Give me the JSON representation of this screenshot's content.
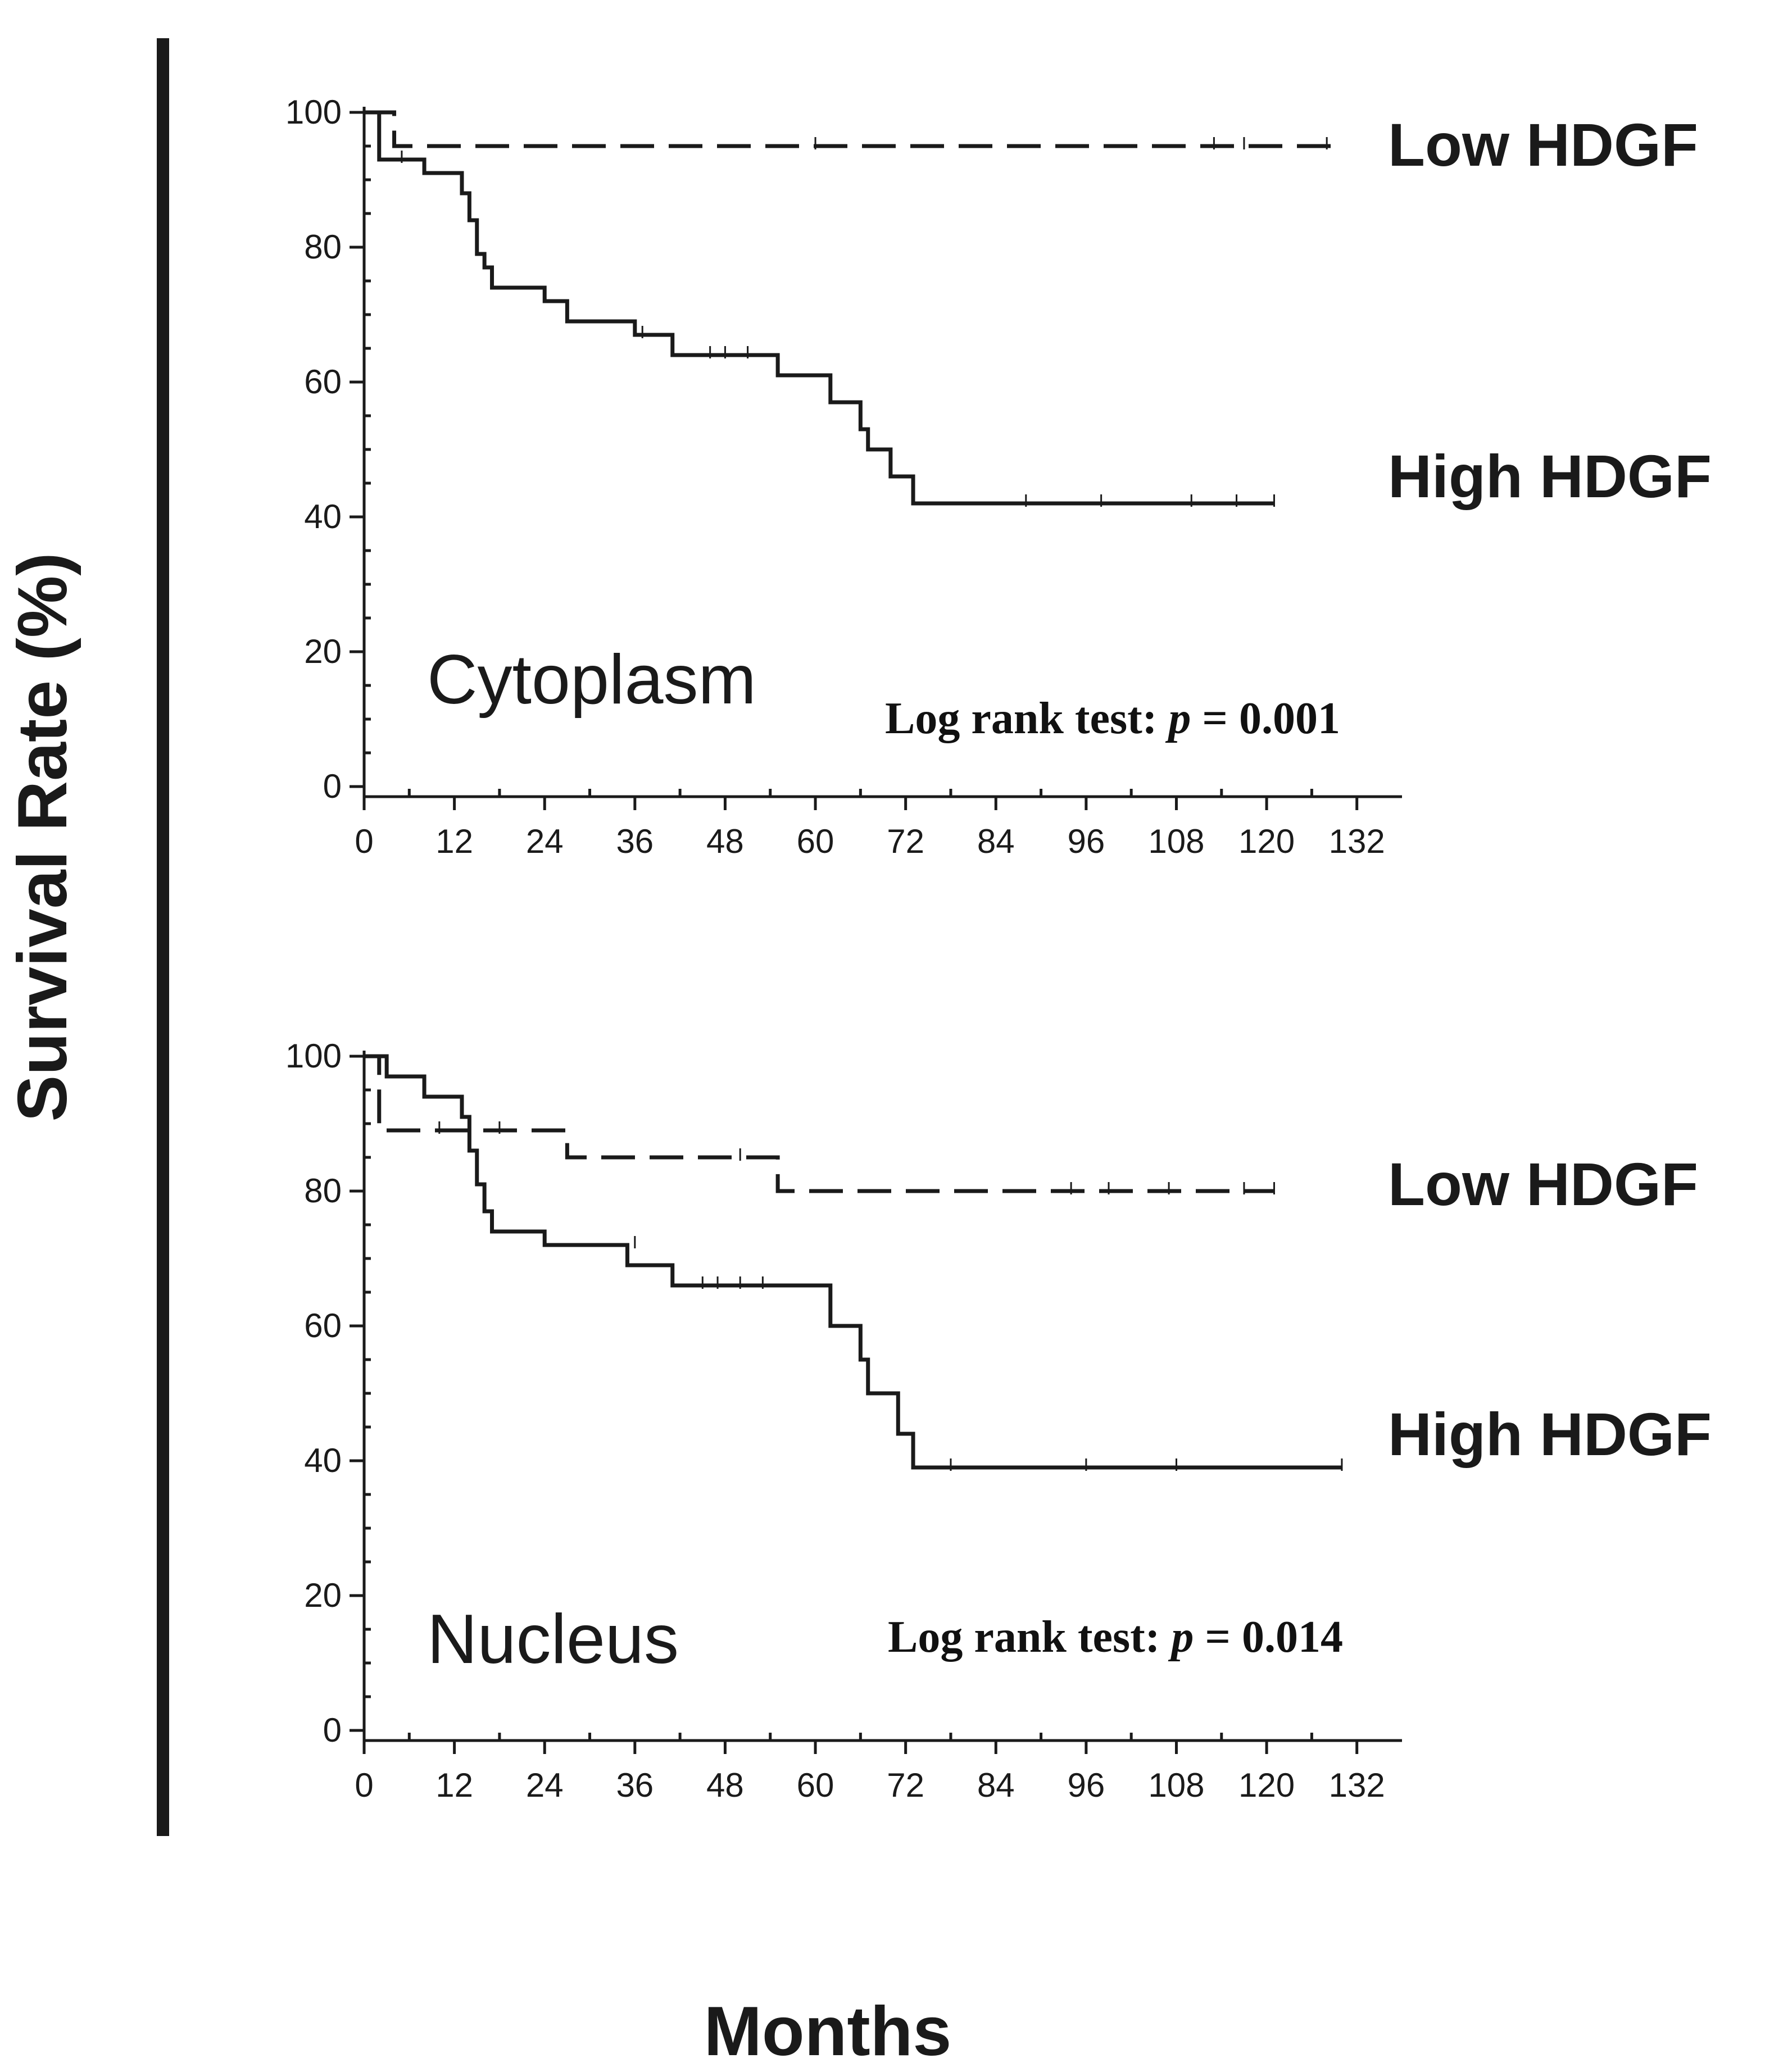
{
  "axis_titles": {
    "y": "Survival Rate (%)",
    "x": "Months"
  },
  "colors": {
    "ink": "#1a1a1a",
    "background": "#ffffff"
  },
  "chart_data": [
    {
      "type": "line",
      "title": "Cytoplasm",
      "xlabel": "Months",
      "ylabel": "Survival Rate (%)",
      "xlim": [
        0,
        138
      ],
      "ylim": [
        0,
        100
      ],
      "x_ticks": [
        0,
        12,
        24,
        36,
        48,
        60,
        72,
        84,
        96,
        108,
        120,
        132
      ],
      "y_ticks": [
        0,
        20,
        40,
        60,
        80,
        100
      ],
      "annotation": {
        "prefix": "Log rank test: ",
        "p_symbol": "p",
        "suffix": " = 0.001"
      },
      "series": [
        {
          "name": "Low HDGF",
          "style": "dashed",
          "steps": [
            [
              0,
              100
            ],
            [
              4,
              95
            ],
            [
              129,
              95
            ]
          ],
          "censored": [
            [
              60,
              95
            ],
            [
              113,
              95
            ],
            [
              117,
              95
            ],
            [
              128,
              95
            ]
          ]
        },
        {
          "name": "High HDGF",
          "style": "solid",
          "steps": [
            [
              0,
              100
            ],
            [
              2,
              93
            ],
            [
              8,
              91
            ],
            [
              13,
              88
            ],
            [
              14,
              84
            ],
            [
              15,
              79
            ],
            [
              16,
              77
            ],
            [
              17,
              74
            ],
            [
              24,
              72
            ],
            [
              27,
              69
            ],
            [
              36,
              67
            ],
            [
              41,
              64
            ],
            [
              55,
              61
            ],
            [
              62,
              57
            ],
            [
              66,
              53
            ],
            [
              67,
              50
            ],
            [
              70,
              46
            ],
            [
              73,
              42
            ],
            [
              121,
              42
            ]
          ],
          "censored": [
            [
              5,
              93
            ],
            [
              37,
              67
            ],
            [
              46,
              64
            ],
            [
              48,
              64
            ],
            [
              51,
              64
            ],
            [
              88,
              42
            ],
            [
              98,
              42
            ],
            [
              110,
              42
            ],
            [
              116,
              42
            ],
            [
              121,
              42
            ]
          ]
        }
      ]
    },
    {
      "type": "line",
      "title": "Nucleus",
      "xlabel": "Months",
      "ylabel": "Survival Rate (%)",
      "xlim": [
        0,
        138
      ],
      "ylim": [
        0,
        100
      ],
      "x_ticks": [
        0,
        12,
        24,
        36,
        48,
        60,
        72,
        84,
        96,
        108,
        120,
        132
      ],
      "y_ticks": [
        0,
        20,
        40,
        60,
        80,
        100
      ],
      "annotation": {
        "prefix": "Log rank test: ",
        "p_symbol": "p",
        "suffix": " = 0.014"
      },
      "series": [
        {
          "name": "Low HDGF",
          "style": "dashed",
          "steps": [
            [
              0,
              100
            ],
            [
              2,
              89
            ],
            [
              27,
              85
            ],
            [
              55,
              80
            ],
            [
              121,
              80
            ]
          ],
          "censored": [
            [
              10,
              89
            ],
            [
              18,
              89
            ],
            [
              50,
              85
            ],
            [
              94,
              80
            ],
            [
              99,
              80
            ],
            [
              107,
              80
            ],
            [
              117,
              80
            ],
            [
              121,
              80
            ]
          ]
        },
        {
          "name": "High HDGF",
          "style": "solid",
          "steps": [
            [
              0,
              100
            ],
            [
              3,
              97
            ],
            [
              8,
              94
            ],
            [
              13,
              91
            ],
            [
              14,
              86
            ],
            [
              15,
              81
            ],
            [
              16,
              77
            ],
            [
              17,
              74
            ],
            [
              24,
              72
            ],
            [
              35,
              69
            ],
            [
              41,
              66
            ],
            [
              62,
              60
            ],
            [
              66,
              55
            ],
            [
              67,
              50
            ],
            [
              71,
              44
            ],
            [
              73,
              39
            ],
            [
              130,
              39
            ]
          ],
          "censored": [
            [
              36,
              72
            ],
            [
              45,
              66
            ],
            [
              47,
              66
            ],
            [
              50,
              66
            ],
            [
              53,
              66
            ],
            [
              78,
              39
            ],
            [
              96,
              39
            ],
            [
              108,
              39
            ],
            [
              130,
              39
            ]
          ]
        }
      ]
    }
  ]
}
